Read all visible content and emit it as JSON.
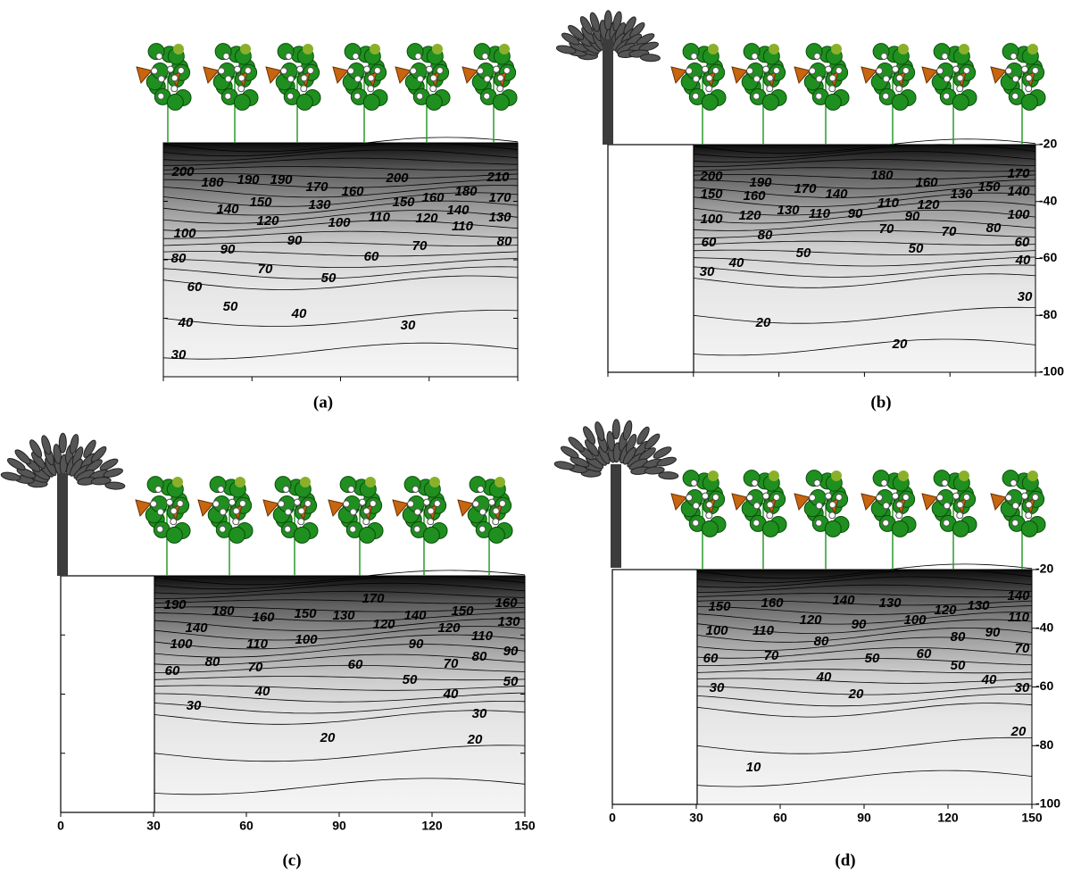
{
  "chart_data": [
    {
      "type": "contour",
      "label": "(a)",
      "xlim": [
        30,
        150
      ],
      "ylim": [
        -100,
        -20
      ],
      "xticks": [
        30,
        60,
        90,
        120,
        150
      ],
      "yticks": [
        -20,
        -40,
        -60,
        -80,
        -100
      ],
      "x_tick_labels": false,
      "y_tick_labels": false,
      "tree": false,
      "contour_labels": [
        200,
        180,
        190,
        190,
        170,
        160,
        200,
        210,
        150,
        130,
        150,
        160,
        180,
        170,
        140,
        120,
        100,
        110,
        120,
        140,
        110,
        130,
        100,
        90,
        90,
        70,
        80,
        80,
        70,
        60,
        60,
        50,
        50,
        40,
        40,
        30,
        30
      ]
    },
    {
      "type": "contour",
      "label": "(b)",
      "xlim": [
        0,
        150
      ],
      "ylim": [
        -100,
        -20
      ],
      "xticks": [
        0,
        30,
        60,
        90,
        120,
        150
      ],
      "yticks": [
        -20,
        -40,
        -60,
        -80,
        -100
      ],
      "x_tick_labels": false,
      "y_tick_labels": true,
      "tree": true,
      "contour_labels": [
        200,
        190,
        170,
        180,
        160,
        150,
        170,
        150,
        160,
        140,
        110,
        120,
        130,
        140,
        100,
        120,
        130,
        110,
        90,
        90,
        100,
        80,
        70,
        70,
        80,
        60,
        50,
        50,
        60,
        40,
        40,
        30,
        30,
        20,
        20
      ]
    },
    {
      "type": "contour",
      "label": "(c)",
      "xlim": [
        0,
        150
      ],
      "ylim": [
        -100,
        -20
      ],
      "xticks": [
        0,
        30,
        60,
        90,
        120,
        150
      ],
      "yticks": [
        -20,
        -40,
        -60,
        -80,
        -100
      ],
      "x_tick_labels": true,
      "y_tick_labels": false,
      "tree": true,
      "contour_labels": [
        190,
        180,
        160,
        150,
        130,
        170,
        120,
        140,
        150,
        160,
        140,
        120,
        130,
        100,
        110,
        100,
        110,
        90,
        90,
        80,
        70,
        60,
        70,
        80,
        60,
        50,
        50,
        40,
        40,
        30,
        30,
        20,
        20
      ]
    },
    {
      "type": "contour",
      "label": "(d)",
      "xlim": [
        0,
        150
      ],
      "ylim": [
        -100,
        -20
      ],
      "xticks": [
        0,
        30,
        60,
        90,
        120,
        150
      ],
      "yticks": [
        -20,
        -40,
        -60,
        -80,
        -100
      ],
      "x_tick_labels": true,
      "y_tick_labels": true,
      "tree": true,
      "contour_labels": [
        150,
        160,
        140,
        130,
        120,
        130,
        140,
        100,
        110,
        120,
        90,
        100,
        80,
        90,
        110,
        60,
        70,
        80,
        60,
        50,
        70,
        50,
        40,
        40,
        30,
        30,
        20,
        20,
        10
      ]
    }
  ]
}
